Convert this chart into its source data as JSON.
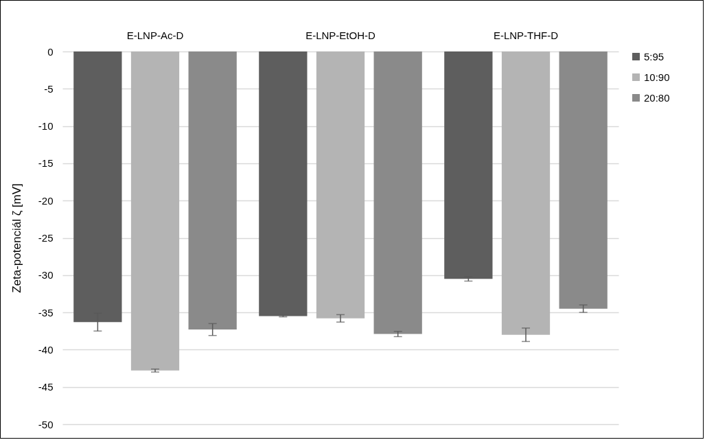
{
  "chart_data": {
    "type": "bar",
    "ylabel": "Zeta-potenciál ζ [mV]",
    "categories": [
      "E-LNP-Ac-D",
      "E-LNP-EtOH-D",
      "E-LNP-THF-D"
    ],
    "series": [
      {
        "name": "5:95",
        "color": "#5e5e5e",
        "values": [
          -36.3,
          -35.5,
          -30.5
        ],
        "errors": [
          1.2,
          0.1,
          0.3
        ]
      },
      {
        "name": "10:90",
        "color": "#b4b4b4",
        "values": [
          -42.8,
          -35.8,
          -38.0
        ],
        "errors": [
          0.2,
          0.5,
          0.9
        ]
      },
      {
        "name": "20:80",
        "color": "#8a8a8a",
        "values": [
          -37.3,
          -37.9,
          -34.5
        ],
        "errors": [
          0.8,
          0.35,
          0.5
        ]
      }
    ],
    "ylim": [
      -50,
      0
    ],
    "yticks": [
      0,
      -5,
      -10,
      -15,
      -20,
      -25,
      -30,
      -35,
      -40,
      -45,
      -50
    ],
    "grid": "y",
    "legend": "right"
  }
}
